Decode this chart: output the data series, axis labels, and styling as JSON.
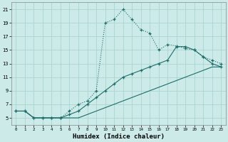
{
  "xlabel": "Humidex (Indice chaleur)",
  "bg_color": "#cceae8",
  "grid_color": "#aad4d0",
  "line_color": "#1a6e6a",
  "xlim": [
    -0.5,
    23.5
  ],
  "ylim": [
    4,
    22
  ],
  "xticks": [
    0,
    1,
    2,
    3,
    4,
    5,
    6,
    7,
    8,
    9,
    10,
    11,
    12,
    13,
    14,
    15,
    16,
    17,
    18,
    19,
    20,
    21,
    22,
    23
  ],
  "yticks": [
    5,
    7,
    9,
    11,
    13,
    15,
    17,
    19,
    21
  ],
  "line1_x": [
    0,
    1,
    2,
    3,
    4,
    5,
    6,
    7,
    8,
    9,
    10,
    11,
    12,
    13,
    14,
    15,
    16,
    17,
    18,
    19,
    20,
    21,
    22,
    23
  ],
  "line1_y": [
    6,
    6,
    5,
    5,
    5,
    5,
    6,
    7,
    7.5,
    9,
    19,
    19.5,
    21,
    19.5,
    18,
    17.5,
    15,
    15.8,
    15.6,
    15.2,
    15,
    14,
    13.5,
    13
  ],
  "line2_x": [
    0,
    1,
    2,
    3,
    4,
    5,
    6,
    7,
    8,
    9,
    10,
    11,
    12,
    13,
    14,
    15,
    16,
    17,
    18,
    19,
    20,
    21,
    22,
    23
  ],
  "line2_y": [
    6,
    6,
    5,
    5,
    5,
    5,
    5.5,
    6,
    7,
    8,
    9,
    10,
    11,
    11.5,
    12,
    12.5,
    13,
    13.5,
    15.5,
    15.5,
    15,
    14,
    13,
    12.5
  ],
  "line3_x": [
    0,
    1,
    2,
    3,
    4,
    5,
    6,
    7,
    8,
    9,
    10,
    11,
    12,
    13,
    14,
    15,
    16,
    17,
    18,
    19,
    20,
    21,
    22,
    23
  ],
  "line3_y": [
    6,
    6,
    5,
    5,
    5,
    5,
    5,
    5,
    5.5,
    6,
    6.5,
    7,
    7.5,
    8,
    8.5,
    9,
    9.5,
    10,
    10.5,
    11,
    11.5,
    12,
    12.5,
    12.5
  ]
}
